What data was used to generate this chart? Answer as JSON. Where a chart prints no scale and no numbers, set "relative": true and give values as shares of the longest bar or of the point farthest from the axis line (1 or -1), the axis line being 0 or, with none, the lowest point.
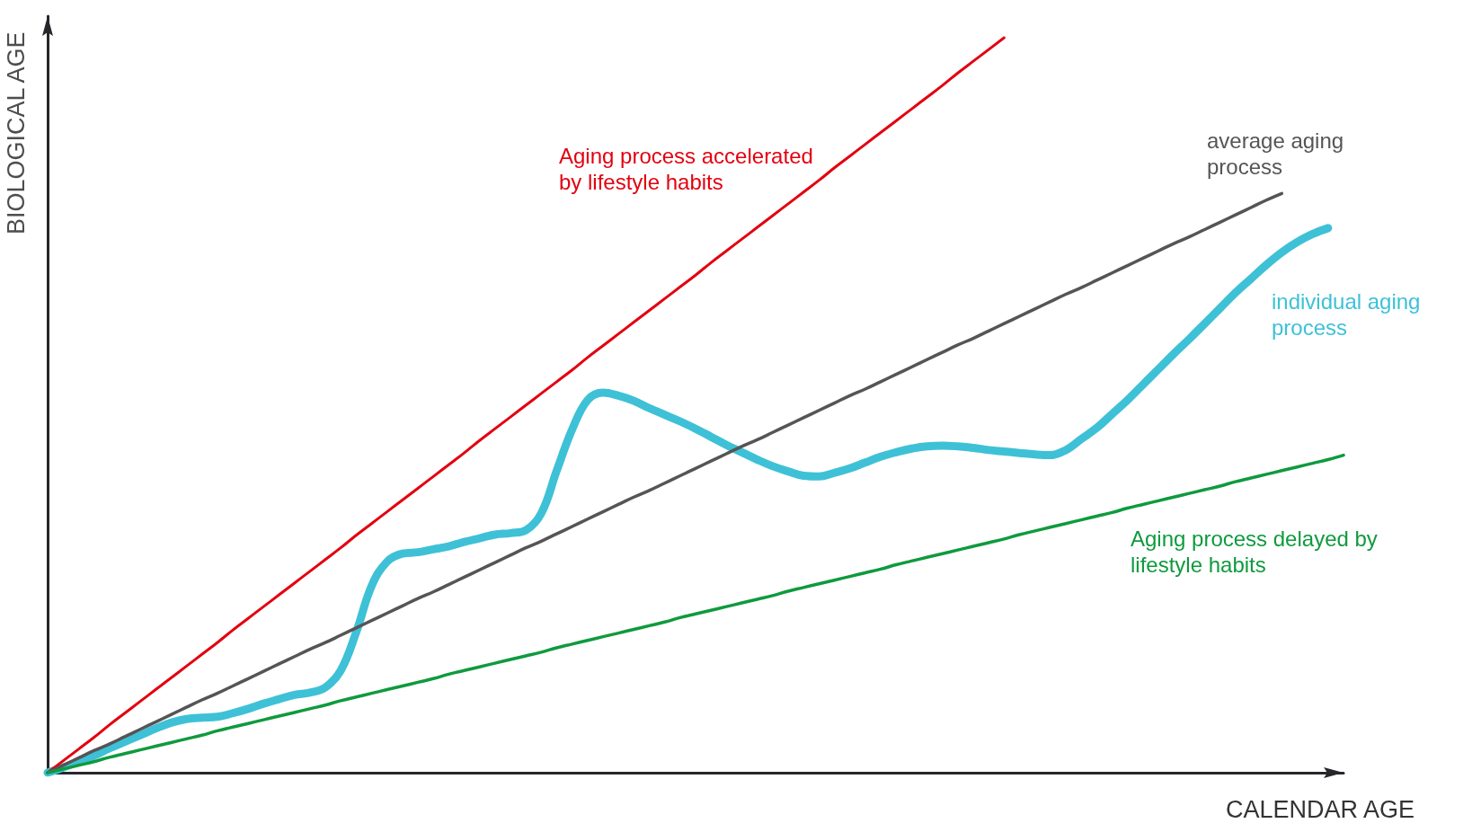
{
  "chart_data": {
    "type": "line",
    "relative": true,
    "xlabel": "CALENDAR AGE",
    "ylabel": "BIOLOGICAL AGE",
    "categories": [
      null,
      null,
      null,
      null,
      null,
      null,
      null,
      null,
      null,
      null,
      null,
      null,
      null,
      null,
      null,
      null,
      null,
      null,
      null,
      null,
      null,
      null,
      null,
      null,
      null,
      null,
      null,
      null,
      null,
      null,
      null,
      null,
      null,
      null,
      null,
      null,
      null,
      null,
      null,
      null,
      null,
      null,
      null,
      null,
      null,
      null,
      null,
      null,
      null,
      null,
      null,
      null,
      null,
      null,
      null,
      null,
      null,
      null,
      null,
      null,
      null,
      null,
      null,
      null,
      null,
      null,
      null,
      null,
      null,
      null,
      null,
      null,
      null,
      null,
      null,
      null,
      null,
      null,
      null,
      null,
      null,
      null,
      null,
      null,
      null
    ],
    "series": [
      {
        "name": "individual aging process",
        "color": "#3ec1d6",
        "values": [
          0,
          0.007,
          0.015,
          0.023,
          0.033,
          0.042,
          0.051,
          0.06,
          0.068,
          0.073,
          0.075,
          0.076,
          0.081,
          0.087,
          0.094,
          0.1,
          0.106,
          0.109,
          0.116,
          0.139,
          0.191,
          0.254,
          0.287,
          0.298,
          0.3,
          0.304,
          0.308,
          0.314,
          0.319,
          0.324,
          0.326,
          0.33,
          0.353,
          0.411,
          0.467,
          0.507,
          0.517,
          0.513,
          0.506,
          0.496,
          0.487,
          0.478,
          0.468,
          0.457,
          0.446,
          0.436,
          0.426,
          0.417,
          0.41,
          0.404,
          0.403,
          0.408,
          0.414,
          0.422,
          0.43,
          0.436,
          0.441,
          0.444,
          0.445,
          0.444,
          0.442,
          0.439,
          0.437,
          0.435,
          0.433,
          0.432,
          0.439,
          0.454,
          0.469,
          0.488,
          0.507,
          0.528,
          0.549,
          0.57,
          0.59,
          0.611,
          0.632,
          0.653,
          0.672,
          0.691,
          0.708,
          0.722,
          0.733,
          0.741,
          null
        ]
      },
      {
        "name": "Aging process accelerated by lifestyle habits",
        "color": "#e3000f",
        "values": [
          0,
          0.016,
          0.032,
          0.048,
          0.065,
          0.081,
          0.097,
          0.113,
          0.129,
          0.145,
          0.161,
          0.177,
          0.194,
          0.21,
          0.226,
          0.242,
          0.258,
          0.274,
          0.29,
          0.306,
          0.323,
          0.339,
          0.355,
          0.371,
          0.387,
          0.403,
          0.419,
          0.435,
          0.452,
          0.468,
          0.484,
          0.5,
          0.516,
          0.532,
          0.548,
          0.565,
          0.581,
          0.597,
          0.613,
          0.629,
          0.645,
          0.661,
          0.677,
          0.694,
          0.71,
          0.726,
          0.742,
          0.758,
          0.774,
          0.79,
          0.806,
          0.823,
          0.839,
          0.855,
          0.871,
          0.887,
          0.903,
          0.919,
          0.935,
          0.952,
          0.968,
          0.984,
          1,
          null,
          null,
          null,
          null,
          null,
          null,
          null,
          null,
          null,
          null,
          null,
          null,
          null,
          null,
          null,
          null,
          null,
          null,
          null,
          null,
          null,
          null
        ]
      },
      {
        "name": "average aging process",
        "color": "#555555",
        "values": [
          0,
          0.01,
          0.02,
          0.03,
          0.039,
          0.049,
          0.059,
          0.069,
          0.079,
          0.089,
          0.099,
          0.108,
          0.118,
          0.128,
          0.138,
          0.148,
          0.158,
          0.168,
          0.177,
          0.187,
          0.197,
          0.207,
          0.217,
          0.227,
          0.237,
          0.246,
          0.256,
          0.266,
          0.276,
          0.286,
          0.296,
          0.306,
          0.315,
          0.325,
          0.335,
          0.345,
          0.355,
          0.365,
          0.375,
          0.384,
          0.394,
          0.404,
          0.414,
          0.424,
          0.434,
          0.444,
          0.453,
          0.463,
          0.473,
          0.483,
          0.493,
          0.503,
          0.513,
          0.522,
          0.532,
          0.542,
          0.552,
          0.562,
          0.572,
          0.582,
          0.591,
          0.601,
          0.611,
          0.621,
          0.631,
          0.641,
          0.651,
          0.66,
          0.67,
          0.68,
          0.69,
          0.7,
          0.71,
          0.72,
          0.729,
          0.739,
          0.749,
          0.759,
          0.769,
          0.779,
          0.788,
          null,
          null,
          null,
          null
        ]
      },
      {
        "name": "Aging process delayed by lifestyle habits",
        "color": "#0f9a3e",
        "values": [
          0,
          0.005,
          0.01,
          0.015,
          0.021,
          0.026,
          0.031,
          0.036,
          0.041,
          0.046,
          0.051,
          0.057,
          0.062,
          0.067,
          0.072,
          0.077,
          0.082,
          0.087,
          0.092,
          0.098,
          0.103,
          0.108,
          0.113,
          0.118,
          0.123,
          0.128,
          0.134,
          0.139,
          0.144,
          0.149,
          0.154,
          0.159,
          0.164,
          0.17,
          0.175,
          0.18,
          0.185,
          0.19,
          0.195,
          0.2,
          0.205,
          0.211,
          0.216,
          0.221,
          0.226,
          0.231,
          0.236,
          0.241,
          0.247,
          0.252,
          0.257,
          0.262,
          0.267,
          0.272,
          0.277,
          0.283,
          0.288,
          0.293,
          0.298,
          0.303,
          0.308,
          0.313,
          0.318,
          0.324,
          0.329,
          0.334,
          0.339,
          0.344,
          0.349,
          0.354,
          0.36,
          0.365,
          0.37,
          0.375,
          0.38,
          0.385,
          0.39,
          0.396,
          0.401,
          0.406,
          0.411,
          0.416,
          0.421,
          0.426,
          0.432
        ]
      }
    ],
    "legend": false,
    "grid": false,
    "marker": "none"
  }
}
